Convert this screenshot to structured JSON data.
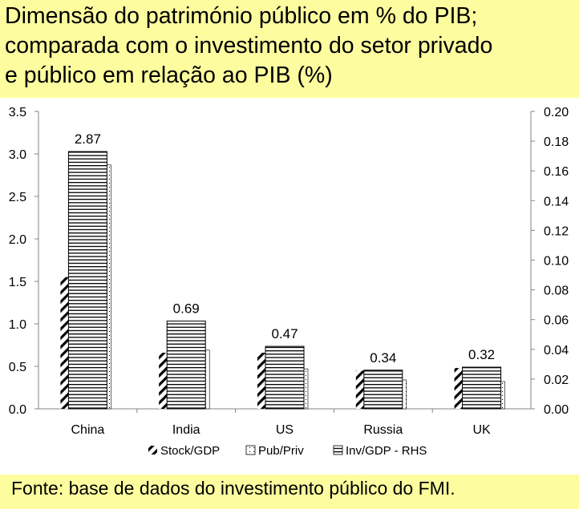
{
  "title_lines": [
    "Dimensão do património público em % do PIB;",
    "comparada com o investimento do setor privado",
    "e público em relação ao PIB (%)"
  ],
  "source": "Fonte: base de dados do investimento público do FMI.",
  "colors": {
    "background": "#fdfd9f",
    "plot_background": "#ffffff",
    "ink": "#000000"
  },
  "chart_data": {
    "type": "bar",
    "categories": [
      "China",
      "India",
      "US",
      "Russia",
      "UK"
    ],
    "series": [
      {
        "name": "Stock/GDP",
        "axis": "left",
        "pattern": "diagonal-hatch",
        "values": [
          1.55,
          0.66,
          0.66,
          0.45,
          0.48
        ]
      },
      {
        "name": "Inv/GDP - RHS",
        "axis": "right",
        "pattern": "horizontal-lines",
        "values": [
          0.173,
          0.059,
          0.042,
          0.026,
          0.028
        ]
      },
      {
        "name": "Pub/Priv",
        "axis": "left",
        "pattern": "dotted",
        "values": [
          2.87,
          0.69,
          0.47,
          0.34,
          0.32
        ]
      }
    ],
    "data_labels": [
      "2.87",
      "0.69",
      "0.47",
      "0.34",
      "0.32"
    ],
    "legend_order": [
      "Stock/GDP",
      "Pub/Priv",
      "Inv/GDP - RHS"
    ],
    "legend_position": "bottom",
    "y_left": {
      "min": 0,
      "max": 3.5,
      "ticks": [
        "0.0",
        "0.5",
        "1.0",
        "1.5",
        "2.0",
        "2.5",
        "3.0",
        "3.5"
      ]
    },
    "y_right": {
      "min": 0,
      "max": 0.2,
      "ticks": [
        "0.00",
        "0.02",
        "0.04",
        "0.06",
        "0.08",
        "0.10",
        "0.12",
        "0.14",
        "0.16",
        "0.18",
        "0.20"
      ]
    },
    "grid": false
  }
}
